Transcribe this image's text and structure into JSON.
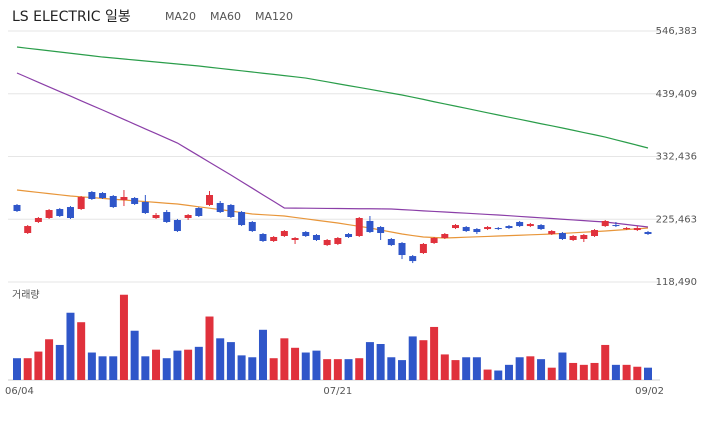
{
  "chart_data": {
    "type": "candlestick",
    "title": "LS ELECTRIC 일봉",
    "categories": [
      "06/04",
      null,
      null,
      null,
      null,
      null,
      null,
      null,
      null,
      null,
      null,
      null,
      null,
      null,
      null,
      null,
      null,
      null,
      null,
      null,
      null,
      null,
      null,
      null,
      null,
      null,
      null,
      null,
      null,
      null,
      "07/21",
      null,
      null,
      null,
      null,
      null,
      null,
      null,
      null,
      null,
      null,
      null,
      null,
      null,
      null,
      null,
      null,
      null,
      null,
      null,
      null,
      null,
      null,
      null,
      null,
      null,
      null,
      null,
      null,
      "09/02"
    ],
    "open": [
      249800,
      202000,
      220800,
      227600,
      242900,
      246300,
      242900,
      271900,
      270200,
      265100,
      258300,
      261700,
      254900,
      227600,
      237800,
      224200,
      227600,
      244600,
      249800,
      253200,
      249800,
      237800,
      220800,
      200300,
      188400,
      196900,
      190100,
      203700,
      198600,
      181500,
      183300,
      200300,
      196900,
      222500,
      212200,
      191800,
      185000,
      162700,
      167900,
      185000,
      193500,
      210500,
      212200,
      208800,
      208800,
      210500,
      213900,
      220800,
      213900,
      215600,
      200300,
      202000,
      190100,
      191800,
      196900,
      213900,
      215600,
      208800,
      207100,
      203700
    ],
    "high": [
      251500,
      215600,
      229300,
      242900,
      244600,
      248000,
      265100,
      273600,
      271900,
      266800,
      275300,
      263400,
      266800,
      236100,
      241200,
      226000,
      234400,
      246300,
      273600,
      256600,
      251500,
      239500,
      222500,
      202000,
      196900,
      207100,
      195200,
      205400,
      200300,
      191800,
      195200,
      202000,
      229300,
      231000,
      213900,
      193500,
      186700,
      164500,
      185000,
      195200,
      202000,
      217300,
      213900,
      210500,
      213900,
      212200,
      215600,
      222500,
      219100,
      217300,
      207100,
      203700,
      198600,
      200300,
      208800,
      224200,
      220800,
      212200,
      213900,
      205400
    ],
    "low": [
      237800,
      200300,
      219100,
      225900,
      229300,
      225900,
      241200,
      258300,
      260000,
      244600,
      248000,
      249800,
      234400,
      225900,
      219100,
      203700,
      224200,
      229300,
      248000,
      236100,
      227600,
      213900,
      203700,
      186700,
      186700,
      195200,
      183300,
      195200,
      188400,
      179800,
      181500,
      193500,
      195200,
      202000,
      190100,
      179800,
      157600,
      150800,
      166200,
      183300,
      191800,
      208800,
      203700,
      200300,
      207100,
      207100,
      208800,
      212200,
      212200,
      207100,
      198600,
      190100,
      188400,
      186700,
      195200,
      212200,
      212200,
      207100,
      205400,
      198600
    ],
    "close": [
      239500,
      213900,
      227600,
      241200,
      231000,
      227600,
      263400,
      260000,
      261700,
      246300,
      263400,
      251500,
      236100,
      232700,
      220800,
      205400,
      232700,
      231000,
      266800,
      237800,
      229300,
      215600,
      205400,
      188400,
      195200,
      205400,
      193500,
      196900,
      190100,
      190100,
      193500,
      195200,
      227600,
      203700,
      202000,
      181500,
      164500,
      154200,
      183300,
      193500,
      200300,
      215600,
      205400,
      203700,
      212200,
      208800,
      210500,
      213900,
      217300,
      208800,
      205400,
      191800,
      196900,
      198600,
      207100,
      222500,
      213900,
      210500,
      210500,
      200300
    ],
    "up_color": "#e0313c",
    "down_color": "#2f56c9",
    "ylim": [
      118490,
      546383
    ],
    "yticks": [
      {
        "value": 118490,
        "label": "118,490"
      },
      {
        "value": 225463,
        "label": "225,463"
      },
      {
        "value": 332436,
        "label": "332,436"
      },
      {
        "value": 439409,
        "label": "439,409"
      },
      {
        "value": 546383,
        "label": "546,383"
      }
    ],
    "grid": true,
    "series": [
      {
        "name": "MA20",
        "color": "#e8963a",
        "values": [
          275300,
          273200,
          271200,
          269200,
          267100,
          265100,
          263700,
          262400,
          261000,
          259600,
          258300,
          256900,
          255600,
          254200,
          252800,
          251500,
          249100,
          246700,
          244300,
          241900,
          239500,
          236900,
          234400,
          233200,
          232200,
          231000,
          228600,
          226200,
          223800,
          221400,
          219100,
          216200,
          213400,
          210500,
          207100,
          203700,
          200300,
          197700,
          195200,
          194300,
          193500,
          194200,
          194900,
          195500,
          196200,
          196900,
          197600,
          198200,
          198900,
          199600,
          200300,
          201300,
          202300,
          203400,
          204400,
          205400,
          206700,
          208000,
          209100,
          210500
        ]
      },
      {
        "name": "MA60",
        "color": "#8b3fa8",
        "values": [
          474800,
          466900,
          458900,
          451100,
          443200,
          435400,
          427400,
          419500,
          411700,
          403700,
          395700,
          387600,
          379500,
          371500,
          363400,
          355400,
          344500,
          333600,
          322700,
          311800,
          300900,
          289600,
          278400,
          267100,
          255900,
          244600,
          244400,
          244300,
          244100,
          243900,
          243800,
          243600,
          243400,
          243300,
          243100,
          242900,
          241900,
          240900,
          239800,
          238800,
          237800,
          236800,
          235800,
          234700,
          233700,
          232700,
          231500,
          230300,
          229100,
          227900,
          226700,
          225500,
          224300,
          223100,
          221900,
          220800,
          218600,
          216500,
          214400,
          212200
        ]
      },
      {
        "name": "MA120",
        "color": "#2a9d4a",
        "values": [
          519100,
          516900,
          514800,
          512700,
          510600,
          508400,
          506300,
          504200,
          502000,
          500300,
          498600,
          496900,
          495200,
          493500,
          491800,
          490100,
          488400,
          486700,
          484600,
          482600,
          480500,
          478500,
          476500,
          474400,
          472400,
          470300,
          468300,
          466200,
          463000,
          459800,
          456500,
          453300,
          450200,
          447000,
          443700,
          440500,
          437300,
          433500,
          429800,
          425800,
          422100,
          418300,
          414600,
          410700,
          406900,
          403200,
          399400,
          395800,
          392100,
          388300,
          384800,
          381000,
          377200,
          373300,
          369500,
          365600,
          360900,
          356300,
          351600,
          346900
        ]
      }
    ],
    "volume": {
      "label": "거래량",
      "ylim": [
        0,
        95
      ],
      "values": [
        23,
        23,
        30,
        43,
        37,
        71,
        61,
        29,
        25,
        25,
        90,
        52,
        25,
        32,
        23,
        31,
        32,
        35,
        67,
        44,
        40,
        26,
        24,
        53,
        23,
        44,
        34,
        29,
        31,
        22,
        22,
        22,
        23,
        40,
        38,
        24,
        21,
        46,
        42,
        56,
        27,
        21,
        24,
        24,
        11,
        10,
        16,
        24,
        25,
        22,
        13,
        29,
        18,
        16,
        18,
        37,
        16,
        16,
        14,
        13
      ]
    }
  }
}
